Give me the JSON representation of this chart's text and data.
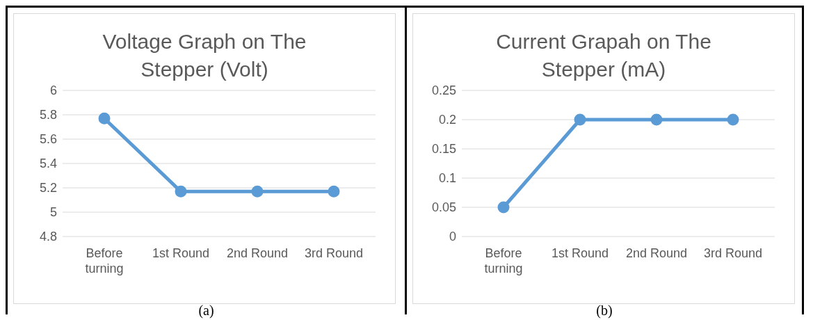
{
  "chart_data": [
    {
      "type": "line",
      "title": "Voltage Graph on The Stepper (Volt)",
      "categories": [
        "Before turning",
        "1st Round",
        "2nd Round",
        "3rd Round"
      ],
      "values": [
        5.77,
        5.17,
        5.17,
        5.17
      ],
      "color": "#5b9bd5",
      "ylim": [
        4.8,
        6
      ],
      "yticks": [
        4.8,
        5,
        5.2,
        5.4,
        5.6,
        5.8,
        6
      ],
      "grid": "y",
      "marker": "circle",
      "legend": false,
      "annotations": [
        "(a)"
      ]
    },
    {
      "type": "line",
      "title": "Current Grapah on The Stepper (mA)",
      "categories": [
        "Before turning",
        "1st Round",
        "2nd Round",
        "3rd Round"
      ],
      "values": [
        0.05,
        0.2,
        0.2,
        0.2
      ],
      "color": "#5b9bd5",
      "ylim": [
        0,
        0.25
      ],
      "yticks": [
        0,
        0.05,
        0.1,
        0.15,
        0.2,
        0.25
      ],
      "grid": "y",
      "marker": "circle",
      "legend": false,
      "annotations": [
        "(b)"
      ]
    }
  ]
}
